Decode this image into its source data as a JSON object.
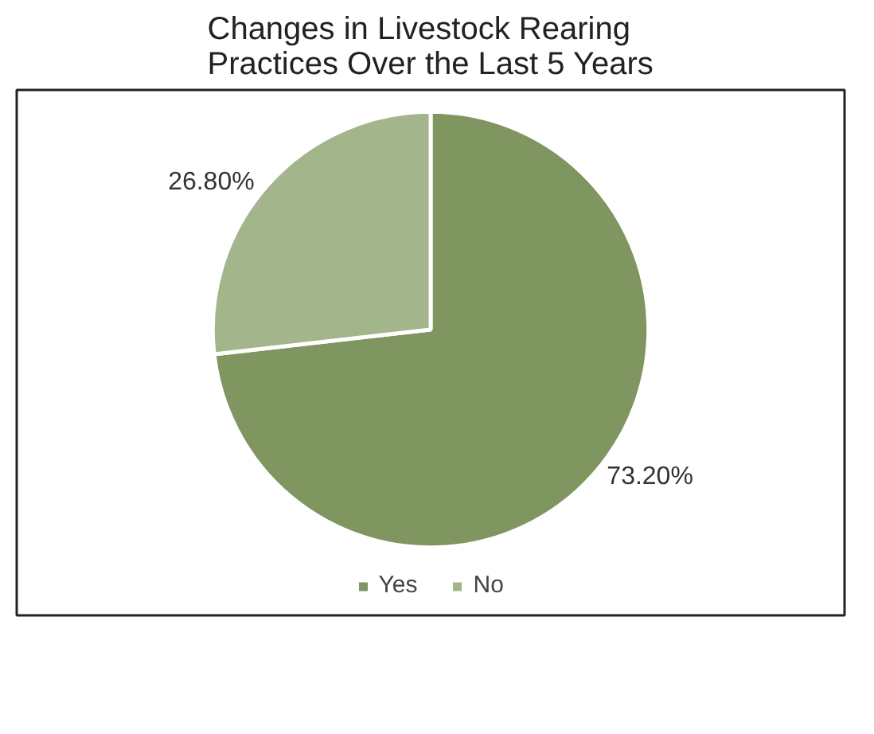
{
  "chart_data": {
    "type": "pie",
    "title": "Changes in Livestock Rearing Practices Over the Last 5 Years",
    "categories": [
      "Yes",
      "No"
    ],
    "values": [
      73.2,
      26.8
    ],
    "colors": [
      "#7f9660",
      "#a3b58b"
    ],
    "value_labels": [
      "73.20%",
      "26.80%"
    ],
    "legend": "bottom"
  }
}
